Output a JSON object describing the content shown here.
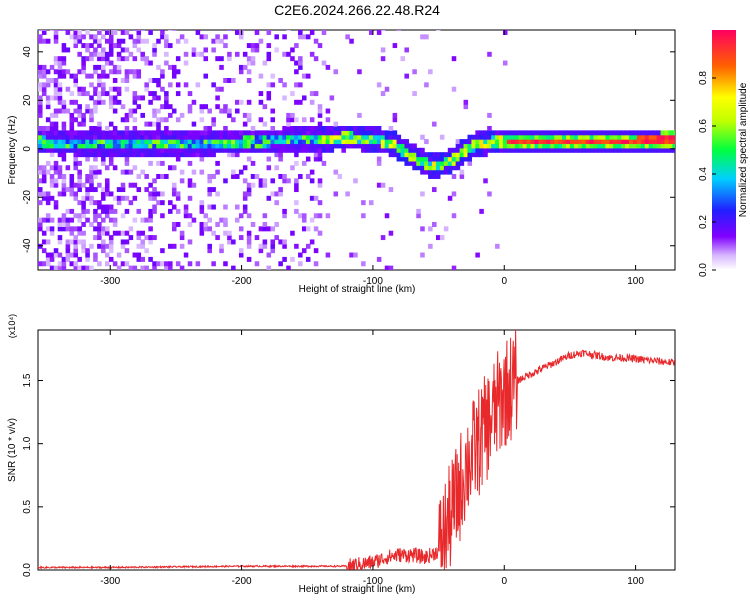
{
  "title": "C2E6.2024.266.22.48.R24",
  "chart_data": [
    {
      "type": "heatmap",
      "name": "spectrogram",
      "xlabel": "Height of straight line (km)",
      "ylabel": "Frequency (Hz)",
      "xlim": [
        -355,
        130
      ],
      "ylim": [
        -50,
        49
      ],
      "xticks": [
        -300,
        -200,
        -100,
        0,
        100
      ],
      "xticklabels": [
        "-300",
        "-200",
        "-100",
        "0",
        "100"
      ],
      "yticks": [
        -40,
        -20,
        0,
        20,
        40
      ],
      "yticklabels": [
        "-40",
        "-20",
        "0",
        "20",
        "40"
      ],
      "ridge": {
        "description": "dominant frequency track (Hz) vs height (km)",
        "x": [
          -350,
          -300,
          -250,
          -200,
          -150,
          -120,
          -100,
          -85,
          -75,
          -65,
          -55,
          -48,
          -40,
          -30,
          -20,
          -10,
          0,
          50,
          100,
          130
        ],
        "y": [
          2,
          1.5,
          1.5,
          2,
          3,
          4,
          3,
          1,
          -3,
          -6,
          -8,
          -7,
          -5,
          -1,
          1.5,
          2,
          2,
          2,
          2.5,
          3
        ]
      },
      "colorbar": {
        "label": "Normalized spectral amplitude",
        "ticks": [
          0.0,
          0.2,
          0.4,
          0.6,
          0.8
        ],
        "ticklabels": [
          "0.0",
          "0.2",
          "0.4",
          "0.6",
          "0.8"
        ],
        "range": [
          0,
          1
        ]
      }
    },
    {
      "type": "line",
      "name": "snr",
      "xlabel": "Height of straight line (km)",
      "ylabel": "SNR (10 * v/v)",
      "yscale_label": "(x10⁴)",
      "xlim": [
        -355,
        130
      ],
      "ylim": [
        0,
        1.9
      ],
      "xticks": [
        -300,
        -200,
        -100,
        0,
        100
      ],
      "xticklabels": [
        "-300",
        "-200",
        "-100",
        "0",
        "100"
      ],
      "yticks": [
        0.0,
        0.5,
        1.0,
        1.5
      ],
      "yticklabels": [
        "0.0",
        "0.5",
        "1.0",
        "1.5"
      ],
      "color": "#e8282a",
      "x": [
        -355,
        -300,
        -250,
        -200,
        -150,
        -120,
        -100,
        -90,
        -80,
        -70,
        -60,
        -50,
        -45,
        -40,
        -35,
        -30,
        -25,
        -20,
        -15,
        -10,
        -5,
        0,
        10,
        20,
        30,
        40,
        50,
        60,
        70,
        80,
        90,
        100,
        110,
        120,
        130
      ],
      "y": [
        0.02,
        0.02,
        0.025,
        0.03,
        0.03,
        0.03,
        0.06,
        0.1,
        0.12,
        0.12,
        0.1,
        0.15,
        0.3,
        0.45,
        0.6,
        0.8,
        0.9,
        1.0,
        1.1,
        1.2,
        1.3,
        1.4,
        1.5,
        1.55,
        1.6,
        1.65,
        1.7,
        1.72,
        1.7,
        1.68,
        1.68,
        1.67,
        1.66,
        1.65,
        1.64
      ]
    }
  ]
}
